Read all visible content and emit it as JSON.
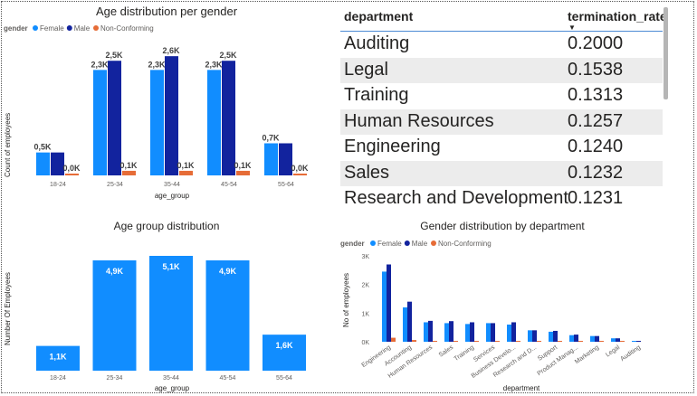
{
  "charts": {
    "top_left": {
      "title": "Age distribution per gender",
      "legend_title": "gender",
      "legend": [
        "Female",
        "Male",
        "Non-Conforming"
      ],
      "xlabel": "age_group",
      "ylabel": "Count of employees"
    },
    "bottom_left": {
      "title": "Age group distribution",
      "xlabel": "age_group",
      "ylabel": "Number Of Employees"
    },
    "bottom_right": {
      "title": "Gender distribution by department",
      "legend_title": "gender",
      "legend": [
        "Female",
        "Male",
        "Non-Conforming"
      ],
      "xlabel": "department",
      "ylabel": "No of employees"
    }
  },
  "colors": {
    "female": "#118dff",
    "male": "#12239e",
    "nonconforming": "#e66c37",
    "text": "#252423",
    "axis_text": "#605e5c"
  },
  "table": {
    "headers": {
      "department": "department",
      "rate": "termination_rate"
    },
    "sort_indicator": "▼",
    "rows": [
      {
        "department": "Auditing",
        "rate": "0.2000"
      },
      {
        "department": "Legal",
        "rate": "0.1538"
      },
      {
        "department": "Training",
        "rate": "0.1313"
      },
      {
        "department": "Human Resources",
        "rate": "0.1257"
      },
      {
        "department": "Engineering",
        "rate": "0.1240"
      },
      {
        "department": "Sales",
        "rate": "0.1232"
      },
      {
        "department": "Research and Development",
        "rate": "0.1231"
      }
    ]
  },
  "chart_data": [
    {
      "type": "bar",
      "title": "Age distribution per gender",
      "categories": [
        "18-24",
        "25-34",
        "35-44",
        "45-54",
        "55-64"
      ],
      "series": [
        {
          "name": "Female",
          "values": [
            0.5,
            2.3,
            2.3,
            2.3,
            0.7
          ],
          "labels": [
            "0,5K",
            "2,3K",
            "2,3K",
            "2,3K",
            "0,7K"
          ]
        },
        {
          "name": "Male",
          "values": [
            0.5,
            2.5,
            2.6,
            2.5,
            0.7
          ],
          "labels": [
            "",
            "2,5K",
            "2,6K",
            "2,5K",
            ""
          ]
        },
        {
          "name": "Non-Conforming",
          "values": [
            0.02,
            0.1,
            0.1,
            0.1,
            0.02
          ],
          "labels": [
            "0,0K",
            "0,1K",
            "0,1K",
            "0,1K",
            "0,0K"
          ]
        }
      ],
      "ylim": [
        0,
        2.8
      ],
      "xlabel": "age_group",
      "ylabel": "Count of employees",
      "legend": "top-left"
    },
    {
      "type": "bar",
      "title": "Age group distribution",
      "categories": [
        "18-24",
        "25-34",
        "35-44",
        "45-54",
        "55-64"
      ],
      "values": [
        1.1,
        4.9,
        5.1,
        4.9,
        1.6
      ],
      "labels": [
        "1,1K",
        "4,9K",
        "5,1K",
        "4,9K",
        "1,6K"
      ],
      "ylim": [
        0,
        5.1
      ],
      "xlabel": "age_group",
      "ylabel": "Number Of Employees"
    },
    {
      "type": "bar",
      "title": "Gender distribution by department",
      "categories": [
        "Engineering",
        "Accounting",
        "Human Resources",
        "Sales",
        "Training",
        "Services",
        "Business Develo...",
        "Research and D...",
        "Support",
        "Product Manag...",
        "Marketing",
        "Legal",
        "Auditing"
      ],
      "series": [
        {
          "name": "Female",
          "values": [
            2450,
            1200,
            680,
            650,
            620,
            650,
            600,
            400,
            350,
            230,
            200,
            120,
            20
          ]
        },
        {
          "name": "Male",
          "values": [
            2700,
            1400,
            730,
            720,
            680,
            650,
            680,
            400,
            380,
            250,
            200,
            120,
            20
          ]
        },
        {
          "name": "Non-Conforming",
          "values": [
            140,
            60,
            30,
            30,
            30,
            30,
            30,
            20,
            15,
            10,
            10,
            5,
            0
          ]
        }
      ],
      "yticks": [
        "0K",
        "1K",
        "2K",
        "3K"
      ],
      "ylim": [
        0,
        3000
      ],
      "xlabel": "department",
      "ylabel": "No of employees",
      "legend": "top-left"
    }
  ]
}
